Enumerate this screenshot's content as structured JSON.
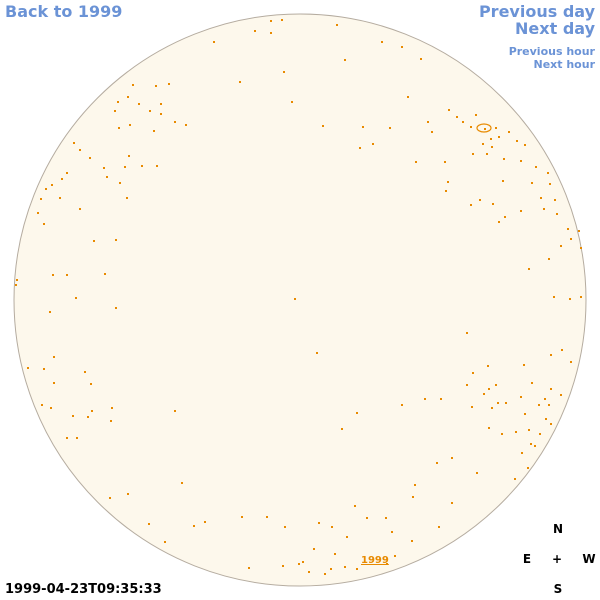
{
  "nav": {
    "back_label": "Back to 1999",
    "prev_day_label": "Previous day",
    "next_day_label": "Next day",
    "prev_hour_label": "Previous hour",
    "next_hour_label": "Next hour"
  },
  "timestamp": "1999-04-23T09:35:33",
  "compass": {
    "north": "N",
    "east": "E",
    "center": "+",
    "west": "W",
    "south": "S"
  },
  "year_marker": "1999",
  "colors": {
    "disc_fill": "#fdf8ec",
    "disc_edge": "#b5aca0",
    "markings": "#e88a00",
    "link": "#6b93d6"
  }
}
